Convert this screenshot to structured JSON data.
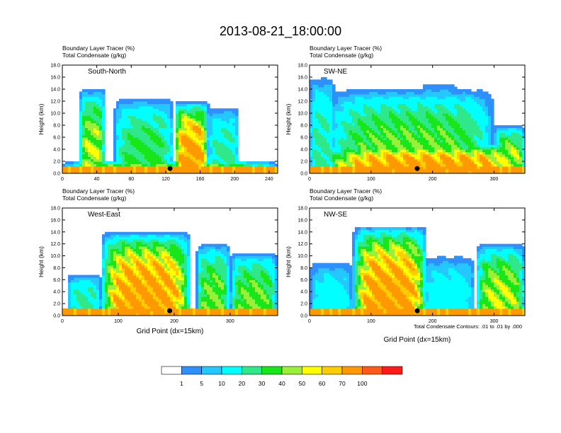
{
  "main_title": "2013-08-21_18:00:00",
  "chart_data": [
    {
      "type": "heatmap",
      "panel_label": "South-North",
      "left_string_1": "Boundary Layer Tracer   (%)",
      "left_string_2": "Total Condensate   (g/kg)",
      "ylabel": "Height (km)",
      "xlabel": "",
      "xlim": [
        0,
        250
      ],
      "ylim": [
        0,
        18
      ],
      "xticks": [
        "0",
        "40",
        "80",
        "120",
        "160",
        "200",
        "240"
      ],
      "xtick_values": [
        0,
        40,
        80,
        120,
        160,
        200,
        240
      ],
      "yticks": [
        "0.0",
        "2.0",
        "4.0",
        "6.0",
        "8.0",
        "10.0",
        "12.0",
        "14.0",
        "16.0",
        "18.0"
      ],
      "marker_x": 125,
      "plumes": [
        {
          "x0": 130,
          "x1": 170,
          "top_km": 12.0,
          "peak": 100
        },
        {
          "x0": 20,
          "x1": 50,
          "top_km": 14.0,
          "peak": 60
        },
        {
          "x0": 60,
          "x1": 130,
          "top_km": 12.5,
          "peak": 40
        },
        {
          "x0": 170,
          "x1": 205,
          "top_km": 11.0,
          "peak": 30
        },
        {
          "x0": 0,
          "x1": 250,
          "top_km": 2.0,
          "peak": 70
        }
      ]
    },
    {
      "type": "heatmap",
      "panel_label": "SW-NE",
      "left_string_1": "Boundary Layer Tracer   (%)",
      "left_string_2": "Total Condensate   (g/kg)",
      "ylabel": "Height (km)",
      "xlabel": "",
      "xlim": [
        0,
        350
      ],
      "ylim": [
        0,
        18
      ],
      "xticks": [
        "0",
        "100",
        "200",
        "300"
      ],
      "xtick_values": [
        0,
        100,
        200,
        300
      ],
      "yticks": [
        "0.0",
        "2.0",
        "4.0",
        "6.0",
        "8.0",
        "10.0",
        "12.0",
        "14.0",
        "16.0",
        "18.0"
      ],
      "marker_x": 175,
      "plumes": [
        {
          "x0": 20,
          "x1": 350,
          "top_km": 5.0,
          "peak": 100
        },
        {
          "x0": 30,
          "x1": 300,
          "top_km": 14.0,
          "peak": 50
        },
        {
          "x0": 0,
          "x1": 40,
          "top_km": 16.0,
          "peak": 30
        },
        {
          "x0": 180,
          "x1": 240,
          "top_km": 15.0,
          "peak": 30
        },
        {
          "x0": 300,
          "x1": 350,
          "top_km": 8.0,
          "peak": 60
        }
      ]
    },
    {
      "type": "heatmap",
      "panel_label": "West-East",
      "left_string_1": "Boundary Layer Tracer   (%)",
      "left_string_2": "Total Condensate   (g/kg)",
      "ylabel": "Height (km)",
      "xlabel": "Grid Point (dx=15km)",
      "xlim": [
        0,
        385
      ],
      "ylim": [
        0,
        18
      ],
      "xticks": [
        "0",
        "100",
        "200",
        "300"
      ],
      "xtick_values": [
        0,
        100,
        200,
        300
      ],
      "yticks": [
        "0.0",
        "2.0",
        "4.0",
        "6.0",
        "8.0",
        "10.0",
        "12.0",
        "14.0",
        "16.0",
        "18.0"
      ],
      "marker_x": 192,
      "plumes": [
        {
          "x0": 70,
          "x1": 230,
          "top_km": 14.0,
          "peak": 100
        },
        {
          "x0": 10,
          "x1": 70,
          "top_km": 7.0,
          "peak": 30
        },
        {
          "x0": 240,
          "x1": 300,
          "top_km": 12.0,
          "peak": 50
        },
        {
          "x0": 300,
          "x1": 385,
          "top_km": 10.5,
          "peak": 50
        }
      ]
    },
    {
      "type": "heatmap",
      "panel_label": "NW-SE",
      "left_string_1": "Boundary Layer Tracer   (%)",
      "left_string_2": "Total Condensate   (g/kg)",
      "ylabel": "Height (km)",
      "xlabel": "Grid Point (dx=15km)",
      "xlim": [
        0,
        350
      ],
      "ylim": [
        0,
        18
      ],
      "xticks": [
        "0",
        "100",
        "200",
        "300"
      ],
      "xtick_values": [
        0,
        100,
        200,
        300
      ],
      "yticks": [
        "0.0",
        "2.0",
        "4.0",
        "6.0",
        "8.0",
        "10.0",
        "12.0",
        "14.0",
        "16.0",
        "18.0"
      ],
      "marker_x": 175,
      "plumes": [
        {
          "x0": 70,
          "x1": 190,
          "top_km": 15.0,
          "peak": 100
        },
        {
          "x0": 0,
          "x1": 70,
          "top_km": 9.0,
          "peak": 20
        },
        {
          "x0": 270,
          "x1": 350,
          "top_km": 12.0,
          "peak": 60
        },
        {
          "x0": 180,
          "x1": 270,
          "top_km": 10.0,
          "peak": 20
        }
      ]
    }
  ],
  "contour_note": "Total Condensate Contours: .01 to .01 by .000",
  "colorbar": {
    "labels": [
      "1",
      "5",
      "10",
      "20",
      "30",
      "40",
      "50",
      "60",
      "70",
      "100"
    ],
    "levels": [
      1,
      5,
      10,
      20,
      30,
      40,
      50,
      60,
      70,
      100
    ],
    "colors": [
      "#ffffff",
      "#2e8fff",
      "#24c8ff",
      "#00ffff",
      "#2ee88a",
      "#19e619",
      "#9bef3a",
      "#ffff00",
      "#ffcc00",
      "#ff9900",
      "#ff5a1a",
      "#ff1a1a"
    ]
  },
  "marker_color": "#000000"
}
